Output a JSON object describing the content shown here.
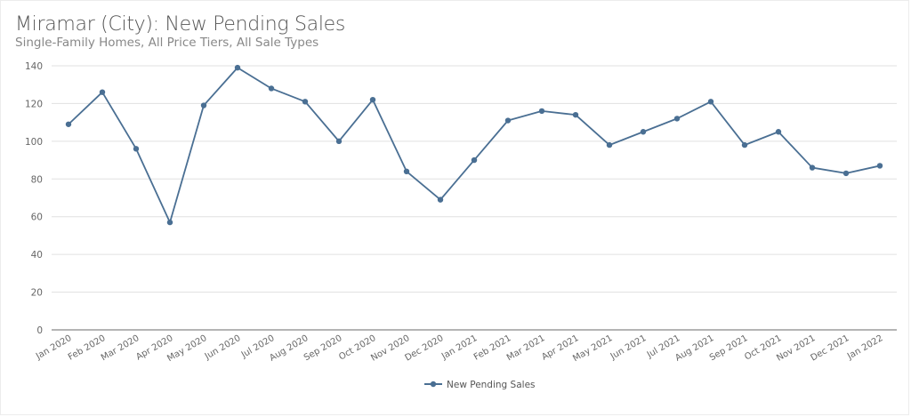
{
  "header": {
    "title": "Miramar (City): New Pending Sales",
    "subtitle": "Single-Family Homes, All Price Tiers, All Sale Types"
  },
  "colors": {
    "series": "#4a6f93",
    "grid": "#e0e0e0",
    "axis": "#888888"
  },
  "chart_data": {
    "type": "line",
    "title": "Miramar (City): New Pending Sales",
    "subtitle": "Single-Family Homes, All Price Tiers, All Sale Types",
    "xlabel": "",
    "ylabel": "",
    "ylim": [
      0,
      140
    ],
    "yticks": [
      0,
      20,
      40,
      60,
      80,
      100,
      120,
      140
    ],
    "grid": true,
    "legend_position": "bottom",
    "categories": [
      "Jan 2020",
      "Feb 2020",
      "Mar 2020",
      "Apr 2020",
      "May 2020",
      "Jun 2020",
      "Jul 2020",
      "Aug 2020",
      "Sep 2020",
      "Oct 2020",
      "Nov 2020",
      "Dec 2020",
      "Jan 2021",
      "Feb 2021",
      "Mar 2021",
      "Apr 2021",
      "May 2021",
      "Jun 2021",
      "Jul 2021",
      "Aug 2021",
      "Sep 2021",
      "Oct 2021",
      "Nov 2021",
      "Dec 2021",
      "Jan 2022"
    ],
    "series": [
      {
        "name": "New Pending Sales",
        "values": [
          109,
          126,
          96,
          57,
          119,
          139,
          128,
          121,
          100,
          122,
          84,
          69,
          90,
          111,
          116,
          114,
          98,
          105,
          112,
          121,
          98,
          105,
          86,
          83,
          87
        ]
      }
    ]
  }
}
